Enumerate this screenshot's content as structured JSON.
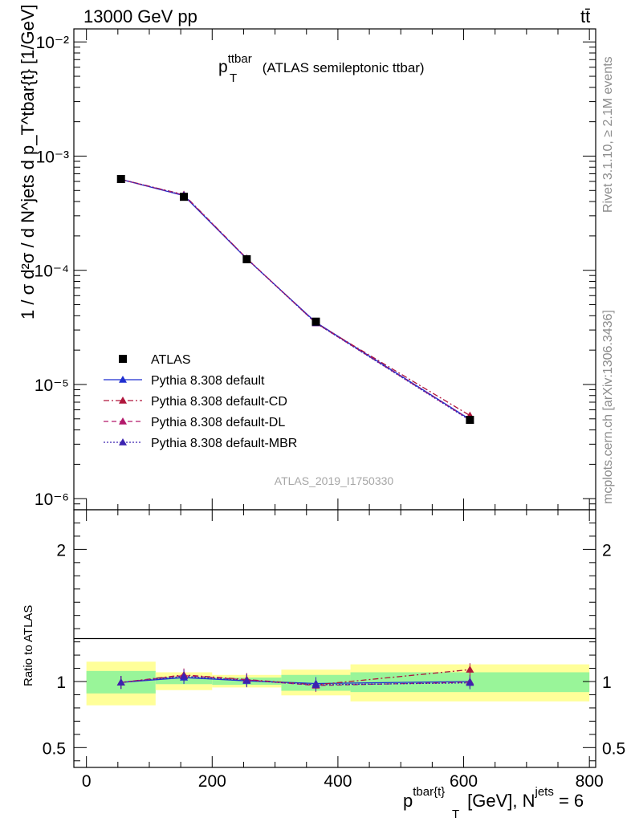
{
  "header": {
    "energy_label": "13000 GeV pp",
    "process_label": "tt̄",
    "side_rivet": "Rivet 3.1.10, ≥ 2.1M events",
    "side_mcplots": "mcplots.cern.ch [arXiv:1306.3436]",
    "analysis_id": "ATLAS_2019_I1750330"
  },
  "chart_data": [
    {
      "type": "line",
      "title": "p_T^ttbar (ATLAS semileptonic ttbar)",
      "title_main": "p",
      "title_sub": "T",
      "title_sup": "ttbar",
      "title_rest": " (ATLAS semileptonic ttbar)",
      "ylabel": "1 / σ d²σ / d N^jets d p_T^tbar{t} [1/GeV]",
      "yscale": "log",
      "xlim": [
        -20,
        810
      ],
      "ylim": [
        8e-07,
        0.013
      ],
      "y_ticks": [
        "10⁻⁶",
        "10⁻⁵",
        "10⁻⁴",
        "10⁻³",
        "10⁻²"
      ],
      "legend_position": "middle-left",
      "x": [
        55,
        155,
        255,
        365,
        610
      ],
      "series": [
        {
          "name": "ATLAS",
          "marker": "square",
          "color": "#000000",
          "values": [
            0.00063,
            0.00044,
            0.000125,
            3.55e-05,
            4.9e-06
          ]
        },
        {
          "name": "Pythia 8.308 default",
          "marker": "triangle",
          "style": "solid",
          "color": "#1f2fd0",
          "values": [
            0.000625,
            0.00045,
            0.000126,
            3.5e-05,
            4.95e-06
          ]
        },
        {
          "name": "Pythia 8.308 default-CD",
          "marker": "triangle",
          "style": "dashdot",
          "color": "#b0163c",
          "values": [
            0.000625,
            0.00046,
            0.000127,
            3.45e-05,
            5.35e-06
          ]
        },
        {
          "name": "Pythia 8.308 default-DL",
          "marker": "triangle",
          "style": "dashed",
          "color": "#b3196b",
          "values": [
            0.000625,
            0.000455,
            0.000127,
            3.45e-05,
            4.9e-06
          ]
        },
        {
          "name": "Pythia 8.308 default-MBR",
          "marker": "triangle",
          "style": "dotted",
          "color": "#3b22b0",
          "values": [
            0.000625,
            0.000455,
            0.000126,
            3.45e-05,
            4.85e-06
          ]
        }
      ]
    },
    {
      "type": "line",
      "ylabel": "Ratio to ATLAS",
      "xlabel": "p_T^tbar{t} [GeV], N^jets = 6",
      "xlabel_main": "p",
      "xlabel_sup": "tbar{t}",
      "xlabel_sub": "T",
      "xlabel_rest": " [GeV], N",
      "xlabel_sup2": "jets",
      "xlabel_end": " = 6",
      "xlim": [
        -20,
        810
      ],
      "ylim": [
        0.35,
        2.3
      ],
      "x_ticks": [
        0,
        200,
        400,
        600,
        800
      ],
      "y_ticks": [
        0.5,
        1,
        2
      ],
      "bins": [
        [
          0,
          110
        ],
        [
          110,
          200
        ],
        [
          200,
          310
        ],
        [
          310,
          420
        ],
        [
          420,
          800
        ]
      ],
      "band_inner": [
        [
          0.91,
          1.08
        ],
        [
          0.98,
          1.035
        ],
        [
          0.975,
          1.03
        ],
        [
          0.93,
          1.05
        ],
        [
          0.92,
          1.07
        ]
      ],
      "band_outer": [
        [
          0.82,
          1.15
        ],
        [
          0.935,
          1.07
        ],
        [
          0.955,
          1.05
        ],
        [
          0.895,
          1.09
        ],
        [
          0.85,
          1.13
        ]
      ],
      "x": [
        55,
        155,
        255,
        365,
        610
      ],
      "series": [
        {
          "name": "Pythia 8.308 default",
          "values": [
            0.993,
            1.03,
            1.005,
            0.985,
            1.0
          ]
        },
        {
          "name": "Pythia 8.308 default-CD",
          "values": [
            0.993,
            1.05,
            1.015,
            0.975,
            1.09
          ]
        },
        {
          "name": "Pythia 8.308 default-DL",
          "values": [
            0.993,
            1.045,
            1.012,
            0.97,
            0.995
          ]
        },
        {
          "name": "Pythia 8.308 default-MBR",
          "values": [
            0.993,
            1.04,
            1.008,
            0.975,
            0.99
          ]
        }
      ]
    }
  ]
}
